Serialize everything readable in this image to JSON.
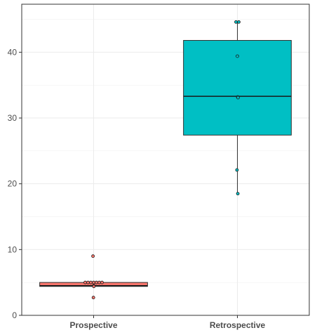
{
  "chart_data": {
    "type": "boxplot",
    "title": "",
    "xlabel": "",
    "ylabel": "",
    "ylim": [
      0,
      47.3
    ],
    "y_ticks": [
      0,
      10,
      20,
      30,
      40
    ],
    "y_tick_labels": [
      "0",
      "10",
      "20",
      "30",
      "40"
    ],
    "grid": true,
    "legend": "none",
    "categories": [
      "Prospective",
      "Retrospective"
    ],
    "series": [
      {
        "category": "Prospective",
        "fill": "#f8766d",
        "whisker_low": 4.4,
        "q1": 4.4,
        "median": 4.5,
        "q3": 5.0,
        "whisker_high": 5.0,
        "points": [
          9.0,
          5.0,
          5.0,
          5.0,
          5.0,
          5.0,
          5.0,
          5.0,
          4.5,
          4.4,
          2.7
        ]
      },
      {
        "category": "Retrospective",
        "fill": "#00bfc4",
        "whisker_low": 18.5,
        "q1": 27.4,
        "median": 33.3,
        "q3": 41.8,
        "whisker_high": 44.6,
        "points": [
          44.6,
          44.6,
          39.4,
          33.2,
          33.1,
          22.1,
          18.5
        ]
      }
    ]
  }
}
